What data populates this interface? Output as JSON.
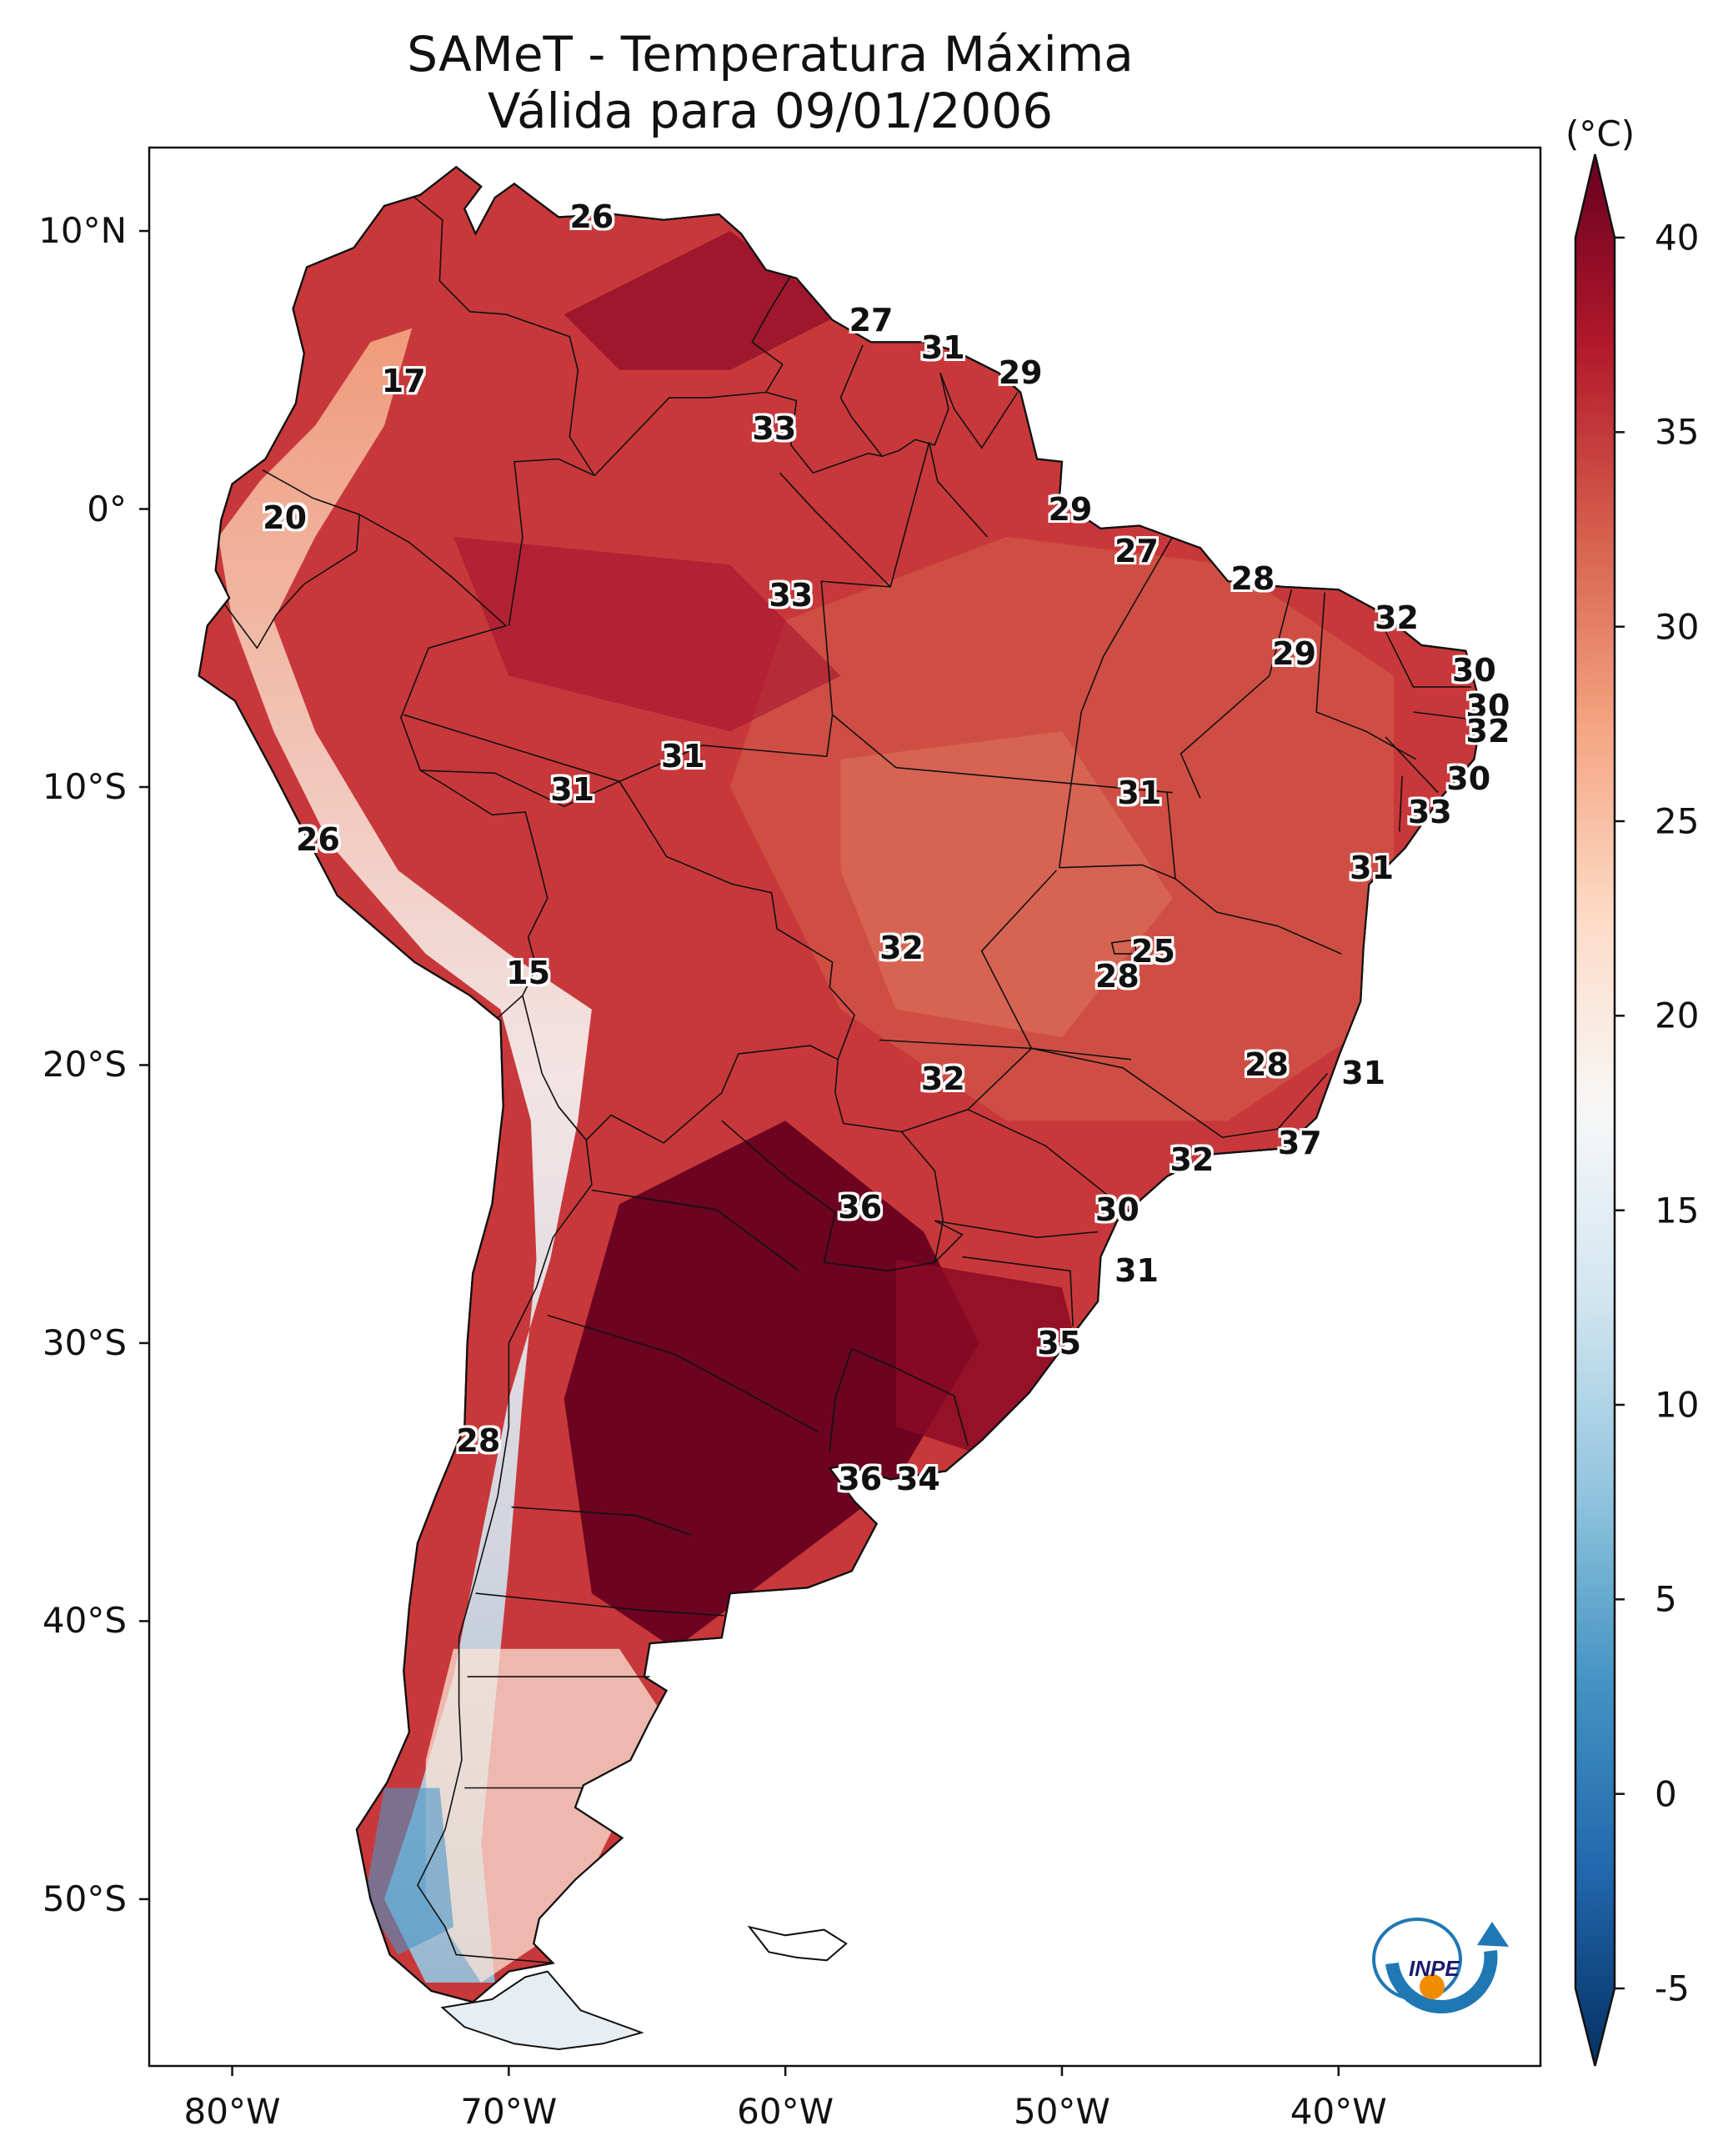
{
  "title": {
    "line1": "SAMeT - Temperatura Máxima",
    "line2": "Válida para 09/01/2006"
  },
  "axes": {
    "x_ticks": [
      {
        "lon": -80,
        "label": "80°W"
      },
      {
        "lon": -70,
        "label": "70°W"
      },
      {
        "lon": -60,
        "label": "60°W"
      },
      {
        "lon": -50,
        "label": "50°W"
      },
      {
        "lon": -40,
        "label": "40°W"
      }
    ],
    "y_ticks": [
      {
        "lat": 10,
        "label": "10°N"
      },
      {
        "lat": 0,
        "label": "0°"
      },
      {
        "lat": -10,
        "label": "10°S"
      },
      {
        "lat": -20,
        "label": "20°S"
      },
      {
        "lat": -30,
        "label": "30°S"
      },
      {
        "lat": -40,
        "label": "40°S"
      },
      {
        "lat": -50,
        "label": "50°S"
      }
    ]
  },
  "colorbar": {
    "unit": "(°C)",
    "min": -5,
    "max": 40,
    "ticks": [
      {
        "value": 40,
        "label": "40"
      },
      {
        "value": 35,
        "label": "35"
      },
      {
        "value": 30,
        "label": "30"
      },
      {
        "value": 25,
        "label": "25"
      },
      {
        "value": 20,
        "label": "20"
      },
      {
        "value": 15,
        "label": "15"
      },
      {
        "value": 10,
        "label": "10"
      },
      {
        "value": 5,
        "label": "5"
      },
      {
        "value": 0,
        "label": "0"
      },
      {
        "value": -5,
        "label": "-5"
      }
    ],
    "colors": [
      "#053061",
      "#2166ac",
      "#4393c3",
      "#92c5de",
      "#d1e5f0",
      "#f7f7f7",
      "#fddbc7",
      "#f4a582",
      "#d6604d",
      "#b2182b",
      "#67001f"
    ]
  },
  "logo": {
    "text": "INPE"
  },
  "map_labels": [
    {
      "text": "26",
      "lon": -67.0,
      "lat": 10.5
    },
    {
      "text": "27",
      "lon": -56.9,
      "lat": 6.8
    },
    {
      "text": "31",
      "lon": -54.3,
      "lat": 5.8
    },
    {
      "text": "29",
      "lon": -51.5,
      "lat": 4.9
    },
    {
      "text": "17",
      "lon": -73.8,
      "lat": 4.6
    },
    {
      "text": "33",
      "lon": -60.4,
      "lat": 2.9
    },
    {
      "text": "20",
      "lon": -78.1,
      "lat": -0.3
    },
    {
      "text": "29",
      "lon": -49.7,
      "lat": -0.0
    },
    {
      "text": "27",
      "lon": -47.3,
      "lat": -1.5
    },
    {
      "text": "33",
      "lon": -59.8,
      "lat": -3.1
    },
    {
      "text": "28",
      "lon": -43.1,
      "lat": -2.5
    },
    {
      "text": "32",
      "lon": -37.9,
      "lat": -3.9
    },
    {
      "text": "29",
      "lon": -41.6,
      "lat": -5.2
    },
    {
      "text": "30",
      "lon": -35.1,
      "lat": -5.8
    },
    {
      "text": "30",
      "lon": -34.6,
      "lat": -7.1
    },
    {
      "text": "32",
      "lon": -34.6,
      "lat": -8.0
    },
    {
      "text": "31",
      "lon": -63.7,
      "lat": -8.9
    },
    {
      "text": "30",
      "lon": -35.3,
      "lat": -9.7
    },
    {
      "text": "31",
      "lon": -67.7,
      "lat": -10.1
    },
    {
      "text": "31",
      "lon": -47.2,
      "lat": -10.2
    },
    {
      "text": "33",
      "lon": -36.7,
      "lat": -10.9
    },
    {
      "text": "26",
      "lon": -76.9,
      "lat": -11.9
    },
    {
      "text": "31",
      "lon": -38.8,
      "lat": -12.9
    },
    {
      "text": "32",
      "lon": -55.8,
      "lat": -15.8
    },
    {
      "text": "25",
      "lon": -46.7,
      "lat": -15.9
    },
    {
      "text": "28",
      "lon": -48.0,
      "lat": -16.8
    },
    {
      "text": "15",
      "lon": -69.3,
      "lat": -16.7
    },
    {
      "text": "28",
      "lon": -42.6,
      "lat": -20.0
    },
    {
      "text": "32",
      "lon": -54.3,
      "lat": -20.5
    },
    {
      "text": "31",
      "lon": -39.1,
      "lat": -20.3
    },
    {
      "text": "37",
      "lon": -41.4,
      "lat": -22.8
    },
    {
      "text": "32",
      "lon": -45.3,
      "lat": -23.4
    },
    {
      "text": "36",
      "lon": -57.3,
      "lat": -25.1
    },
    {
      "text": "30",
      "lon": -48.0,
      "lat": -25.2
    },
    {
      "text": "31",
      "lon": -47.3,
      "lat": -27.4
    },
    {
      "text": "35",
      "lon": -50.1,
      "lat": -30.0
    },
    {
      "text": "28",
      "lon": -71.1,
      "lat": -33.5
    },
    {
      "text": "36",
      "lon": -57.3,
      "lat": -34.9
    },
    {
      "text": "34",
      "lon": -55.2,
      "lat": -34.9
    }
  ]
}
